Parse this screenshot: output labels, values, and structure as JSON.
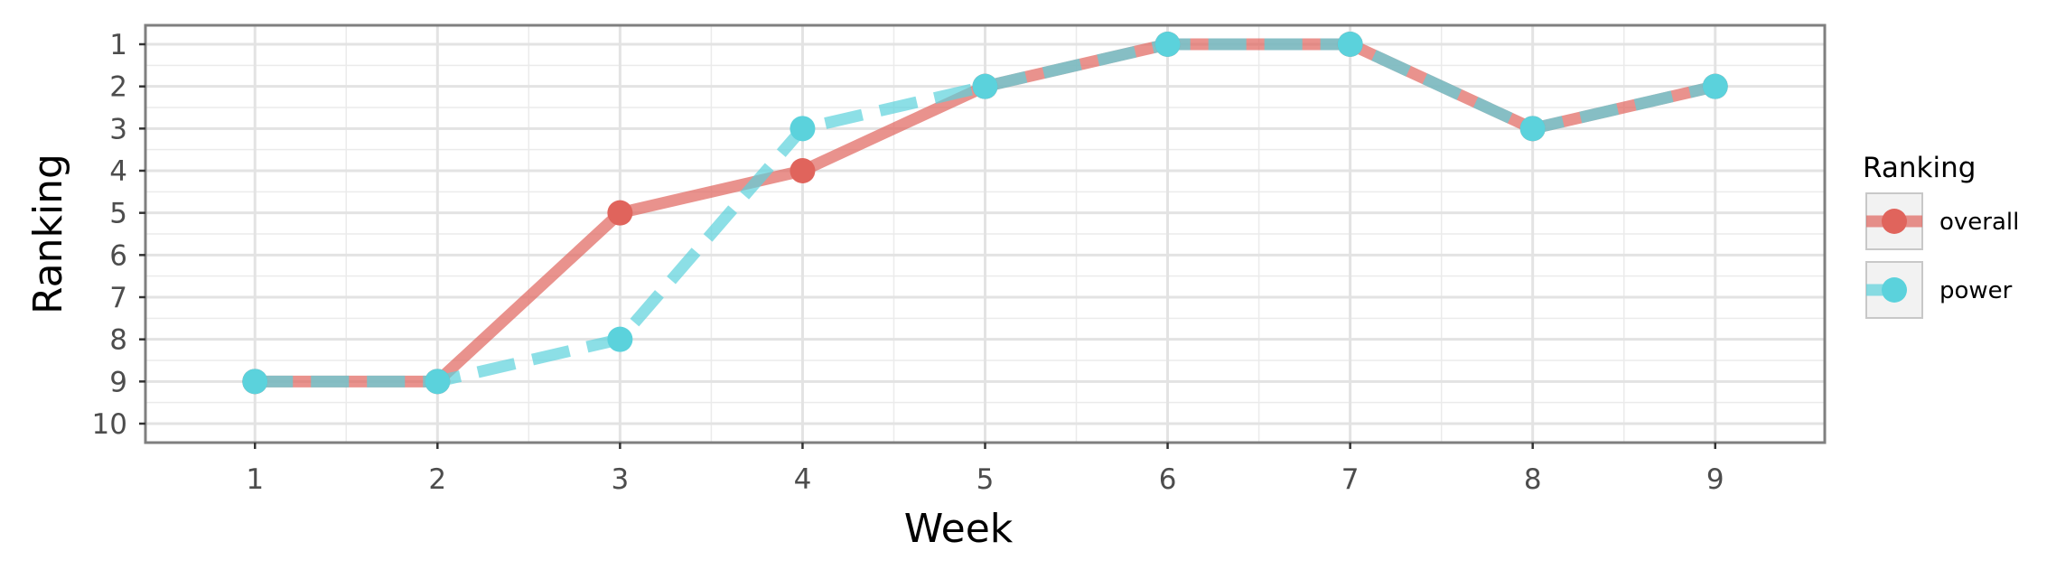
{
  "chart_data": {
    "type": "line",
    "xlabel": "Week",
    "ylabel": "Ranking",
    "x": [
      1,
      2,
      3,
      4,
      5,
      6,
      7,
      8,
      9
    ],
    "x_ticks": [
      "1",
      "2",
      "3",
      "4",
      "5",
      "6",
      "7",
      "8",
      "9"
    ],
    "y_ticks": [
      "1",
      "2",
      "3",
      "4",
      "5",
      "6",
      "7",
      "8",
      "9",
      "10"
    ],
    "xlim": [
      0.4,
      9.6
    ],
    "ylim": [
      10.45,
      0.55
    ],
    "y_axis_reversed": true,
    "grid": true,
    "legend": {
      "title": "Ranking",
      "placement": "right"
    },
    "series": [
      {
        "name": "overall",
        "color": "#E0645C",
        "linestyle": "solid",
        "values": [
          9,
          9,
          5,
          4,
          2,
          1,
          1,
          3,
          2
        ]
      },
      {
        "name": "power",
        "color": "#5BD2DC",
        "linestyle": "dashed",
        "values": [
          9,
          9,
          8,
          3,
          2,
          1,
          1,
          3,
          2
        ]
      }
    ]
  }
}
